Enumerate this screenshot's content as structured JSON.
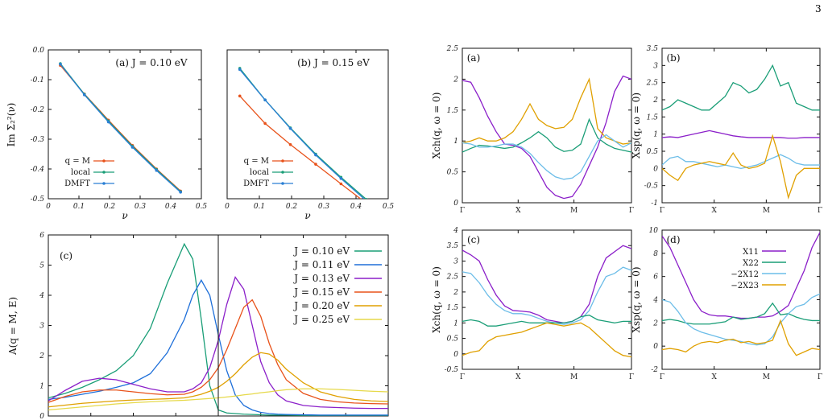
{
  "page_number": "3",
  "colors": {
    "green": "#1a9e77",
    "blue": "#1e6fd9",
    "purple": "#8b1fc9",
    "orange": "#e8521a",
    "gold": "#e0a000",
    "yellow": "#e6d94a",
    "sky": "#6cbde8",
    "dmft": "#2a7fd4"
  },
  "chart_data": [
    {
      "id": "top-left-a",
      "type": "line",
      "panel_label": "(a) J = 0.10 eV",
      "xlabel": "ν",
      "ylabel": "Im Σ₂²(ν)",
      "xlim": [
        0,
        0.5
      ],
      "ylim": [
        -0.5,
        0.0
      ],
      "xticks": [
        "0",
        "0.1",
        "0.2",
        "0.3",
        "0.4",
        "0.5"
      ],
      "yticks": [
        "0.0",
        "-0.1",
        "-0.2",
        "-0.3",
        "-0.4",
        "-0.5"
      ],
      "legend": [
        "q = M",
        "local",
        "DMFT"
      ],
      "x": [
        0.0393,
        0.1178,
        0.1963,
        0.2749,
        0.3534,
        0.432
      ],
      "series": [
        {
          "name": "q = M",
          "color": "#e8521a",
          "values": [
            -0.052,
            -0.148,
            -0.236,
            -0.321,
            -0.4,
            -0.474
          ]
        },
        {
          "name": "local",
          "color": "#1a9e77",
          "values": [
            -0.046,
            -0.149,
            -0.239,
            -0.324,
            -0.402,
            -0.476
          ]
        },
        {
          "name": "DMFT",
          "color": "#2a7fd4",
          "values": [
            -0.048,
            -0.151,
            -0.242,
            -0.327,
            -0.405,
            -0.478
          ]
        }
      ]
    },
    {
      "id": "top-left-b",
      "type": "line",
      "panel_label": "(b) J = 0.15 eV",
      "xlabel": "ν",
      "xlim": [
        0,
        0.5
      ],
      "ylim": [
        -0.5,
        0.0
      ],
      "xticks": [
        "0",
        "0.1",
        "0.2",
        "0.3",
        "0.4",
        "0.5"
      ],
      "legend": [
        "q = M",
        "local",
        "DMFT"
      ],
      "x": [
        0.0393,
        0.1178,
        0.1963,
        0.2749,
        0.3534,
        0.432
      ],
      "series": [
        {
          "name": "q = M",
          "color": "#e8521a",
          "values": [
            -0.155,
            -0.247,
            -0.318,
            -0.384,
            -0.45,
            -0.515
          ]
        },
        {
          "name": "local",
          "color": "#1a9e77",
          "values": [
            -0.062,
            -0.168,
            -0.262,
            -0.35,
            -0.428,
            -0.502
          ]
        },
        {
          "name": "DMFT",
          "color": "#2a7fd4",
          "values": [
            -0.066,
            -0.168,
            -0.264,
            -0.353,
            -0.432,
            -0.507
          ]
        }
      ]
    },
    {
      "id": "bottom-left-c",
      "type": "line",
      "panel_label": "(c)",
      "ylabel": "A(q = M, E)",
      "xlim": [
        -0.2,
        0.2
      ],
      "ylim": [
        0,
        6
      ],
      "xticks": [
        "-0.20",
        "-0.15",
        "-0.10",
        "-0.05",
        "0.00",
        "0.05",
        "0.10",
        "0.15",
        "0.20"
      ],
      "yticks": [
        "0",
        "1",
        "2",
        "3",
        "4",
        "5",
        "6"
      ],
      "x": [
        -0.2,
        -0.18,
        -0.16,
        -0.14,
        -0.12,
        -0.1,
        -0.08,
        -0.06,
        -0.04,
        -0.03,
        -0.02,
        -0.01,
        0.0,
        0.01,
        0.02,
        0.03,
        0.04,
        0.05,
        0.06,
        0.07,
        0.08,
        0.1,
        0.12,
        0.14,
        0.16,
        0.18,
        0.2
      ],
      "series": [
        {
          "name": "J = 0.10 eV",
          "color": "#1a9e77",
          "values": [
            0.6,
            0.75,
            0.95,
            1.2,
            1.5,
            2.0,
            2.9,
            4.4,
            5.7,
            5.2,
            3.2,
            1.0,
            0.2,
            0.1,
            0.08,
            0.06,
            0.05,
            0.04,
            0.03,
            0.03,
            0.03,
            0.02,
            0.02,
            0.02,
            0.02,
            0.02,
            0.02
          ]
        },
        {
          "name": "J = 0.11 eV",
          "color": "#1e6fd9",
          "values": [
            0.55,
            0.62,
            0.72,
            0.82,
            0.95,
            1.1,
            1.4,
            2.1,
            3.2,
            4.0,
            4.5,
            4.0,
            2.7,
            1.5,
            0.7,
            0.35,
            0.2,
            0.12,
            0.08,
            0.06,
            0.05,
            0.04,
            0.03,
            0.03,
            0.03,
            0.03,
            0.03
          ]
        },
        {
          "name": "J = 0.13 eV",
          "color": "#8b1fc9",
          "values": [
            0.5,
            0.85,
            1.15,
            1.25,
            1.2,
            1.05,
            0.9,
            0.8,
            0.8,
            0.9,
            1.1,
            1.6,
            2.5,
            3.7,
            4.6,
            4.2,
            3.0,
            1.8,
            1.1,
            0.7,
            0.5,
            0.35,
            0.3,
            0.28,
            0.26,
            0.25,
            0.25
          ]
        },
        {
          "name": "J = 0.15 eV",
          "color": "#e8521a",
          "values": [
            0.45,
            0.65,
            0.8,
            0.86,
            0.86,
            0.8,
            0.74,
            0.7,
            0.72,
            0.8,
            0.95,
            1.2,
            1.6,
            2.2,
            2.9,
            3.6,
            3.85,
            3.3,
            2.4,
            1.7,
            1.2,
            0.75,
            0.55,
            0.47,
            0.43,
            0.41,
            0.4
          ]
        },
        {
          "name": "J = 0.20 eV",
          "color": "#e0a000",
          "values": [
            0.3,
            0.36,
            0.42,
            0.46,
            0.5,
            0.53,
            0.55,
            0.57,
            0.6,
            0.65,
            0.72,
            0.82,
            0.95,
            1.15,
            1.4,
            1.7,
            1.95,
            2.1,
            2.05,
            1.85,
            1.55,
            1.1,
            0.8,
            0.65,
            0.55,
            0.5,
            0.48
          ]
        },
        {
          "name": "J = 0.25 eV",
          "color": "#e6d94a",
          "values": [
            0.2,
            0.25,
            0.3,
            0.35,
            0.4,
            0.44,
            0.47,
            0.5,
            0.52,
            0.54,
            0.56,
            0.58,
            0.6,
            0.63,
            0.66,
            0.7,
            0.73,
            0.77,
            0.8,
            0.84,
            0.87,
            0.9,
            0.9,
            0.88,
            0.85,
            0.82,
            0.8
          ]
        }
      ]
    },
    {
      "id": "right-a",
      "type": "line",
      "panel_label": "(a)",
      "ylabel": "Xch(q, ω = 0)",
      "ylim": [
        0,
        2.5
      ],
      "yticks": [
        "0",
        "0.5",
        "1",
        "1.5",
        "2",
        "2.5"
      ],
      "xticks": [
        "Γ",
        "X",
        "M",
        "Γ"
      ],
      "x": [
        0,
        0.05,
        0.1,
        0.15,
        0.2,
        0.25,
        0.3,
        0.35,
        0.4,
        0.45,
        0.5,
        0.55,
        0.6,
        0.65,
        0.7,
        0.75,
        0.8,
        0.85,
        0.9,
        0.95,
        1.0
      ],
      "series": [
        {
          "color": "#8b1fc9",
          "values": [
            1.98,
            1.95,
            1.7,
            1.4,
            1.15,
            0.95,
            0.93,
            0.88,
            0.75,
            0.5,
            0.25,
            0.12,
            0.07,
            0.1,
            0.3,
            0.6,
            0.9,
            1.3,
            1.8,
            2.05,
            2.0
          ]
        },
        {
          "color": "#1a9e77",
          "values": [
            0.82,
            0.88,
            0.93,
            0.92,
            0.9,
            0.88,
            0.9,
            0.97,
            1.05,
            1.15,
            1.05,
            0.9,
            0.83,
            0.85,
            0.95,
            1.35,
            1.05,
            0.95,
            0.88,
            0.85,
            0.82
          ]
        },
        {
          "color": "#e0a000",
          "values": [
            0.97,
            1.0,
            1.05,
            1.0,
            1.0,
            1.05,
            1.15,
            1.35,
            1.6,
            1.35,
            1.25,
            1.2,
            1.22,
            1.35,
            1.7,
            2.0,
            1.2,
            1.05,
            1.0,
            0.95,
            0.97
          ]
        },
        {
          "color": "#6cbde8",
          "values": [
            0.97,
            0.95,
            0.9,
            0.9,
            0.92,
            0.95,
            0.95,
            0.9,
            0.8,
            0.65,
            0.52,
            0.42,
            0.38,
            0.4,
            0.5,
            0.75,
            1.0,
            1.1,
            1.0,
            0.9,
            0.97
          ]
        }
      ]
    },
    {
      "id": "right-b",
      "type": "line",
      "panel_label": "(b)",
      "ylabel": "Xsp(q, ω = 0)",
      "ylim": [
        -1,
        3.5
      ],
      "yticks": [
        "-1",
        "-0.5",
        "0",
        "0.5",
        "1",
        "1.5",
        "2",
        "2.5",
        "3",
        "3.5"
      ],
      "xticks": [
        "Γ",
        "X",
        "M",
        "Γ"
      ],
      "x": [
        0,
        0.05,
        0.1,
        0.15,
        0.2,
        0.25,
        0.3,
        0.35,
        0.4,
        0.45,
        0.5,
        0.55,
        0.6,
        0.65,
        0.7,
        0.75,
        0.8,
        0.85,
        0.9,
        0.95,
        1.0
      ],
      "series": [
        {
          "color": "#1a9e77",
          "values": [
            1.7,
            1.8,
            2.0,
            1.9,
            1.8,
            1.7,
            1.7,
            1.9,
            2.1,
            2.5,
            2.4,
            2.2,
            2.3,
            2.6,
            3.0,
            2.4,
            2.5,
            1.9,
            1.8,
            1.7,
            1.7
          ]
        },
        {
          "color": "#8b1fc9",
          "values": [
            0.9,
            0.92,
            0.9,
            0.95,
            1.0,
            1.05,
            1.1,
            1.05,
            1.0,
            0.95,
            0.92,
            0.9,
            0.9,
            0.9,
            0.9,
            0.9,
            0.88,
            0.88,
            0.9,
            0.9,
            0.9
          ]
        },
        {
          "color": "#6cbde8",
          "values": [
            0.1,
            0.3,
            0.35,
            0.2,
            0.2,
            0.15,
            0.1,
            0.05,
            0.1,
            0.05,
            0.0,
            0.05,
            0.1,
            0.2,
            0.3,
            0.4,
            0.3,
            0.15,
            0.1,
            0.1,
            0.1
          ]
        },
        {
          "color": "#e0a000",
          "values": [
            0.0,
            -0.2,
            -0.35,
            0.0,
            0.1,
            0.15,
            0.2,
            0.15,
            0.1,
            0.45,
            0.1,
            0.0,
            0.05,
            0.15,
            0.95,
            0.2,
            -0.85,
            -0.2,
            0.0,
            0.0,
            0.0
          ]
        }
      ]
    },
    {
      "id": "right-c",
      "type": "line",
      "panel_label": "(c)",
      "ylabel": "Xch(q, ω = 0)",
      "ylim": [
        -0.5,
        4
      ],
      "yticks": [
        "-0.5",
        "0",
        "0.5",
        "1",
        "1.5",
        "2",
        "2.5",
        "3",
        "3.5",
        "4"
      ],
      "xticks": [
        "Γ",
        "X",
        "M",
        "Γ"
      ],
      "x": [
        0,
        0.05,
        0.1,
        0.15,
        0.2,
        0.25,
        0.3,
        0.35,
        0.4,
        0.45,
        0.5,
        0.55,
        0.6,
        0.65,
        0.7,
        0.75,
        0.8,
        0.85,
        0.9,
        0.95,
        1.0
      ],
      "series": [
        {
          "color": "#8b1fc9",
          "values": [
            3.35,
            3.2,
            3.0,
            2.4,
            1.9,
            1.55,
            1.4,
            1.38,
            1.35,
            1.25,
            1.1,
            1.05,
            1.0,
            1.05,
            1.2,
            1.6,
            2.5,
            3.1,
            3.3,
            3.5,
            3.4
          ]
        },
        {
          "color": "#6cbde8",
          "values": [
            2.65,
            2.6,
            2.3,
            1.9,
            1.6,
            1.4,
            1.3,
            1.3,
            1.25,
            1.15,
            1.05,
            1.0,
            0.95,
            1.0,
            1.1,
            1.4,
            2.0,
            2.5,
            2.6,
            2.8,
            2.7
          ]
        },
        {
          "color": "#1a9e77",
          "values": [
            1.05,
            1.1,
            1.05,
            0.9,
            0.9,
            0.95,
            1.0,
            1.05,
            1.0,
            1.0,
            1.0,
            1.0,
            1.0,
            1.05,
            1.2,
            1.25,
            1.1,
            1.05,
            1.0,
            1.05,
            1.05
          ]
        },
        {
          "color": "#e0a000",
          "values": [
            -0.05,
            0.05,
            0.1,
            0.4,
            0.55,
            0.6,
            0.65,
            0.7,
            0.8,
            0.9,
            1.0,
            0.95,
            0.9,
            0.95,
            1.0,
            0.85,
            0.6,
            0.35,
            0.1,
            -0.05,
            -0.1
          ]
        }
      ]
    },
    {
      "id": "right-d",
      "type": "line",
      "panel_label": "(d)",
      "ylabel": "Xsp(q, ω = 0)",
      "ylim": [
        -2,
        10
      ],
      "yticks": [
        "-2",
        "0",
        "2",
        "4",
        "6",
        "8",
        "10"
      ],
      "xticks": [
        "Γ",
        "X",
        "M",
        "Γ"
      ],
      "legend": [
        "X11",
        "X22",
        "−2X12",
        "−2X23"
      ],
      "x": [
        0,
        0.05,
        0.1,
        0.15,
        0.2,
        0.25,
        0.3,
        0.35,
        0.4,
        0.45,
        0.5,
        0.55,
        0.6,
        0.65,
        0.7,
        0.75,
        0.8,
        0.85,
        0.9,
        0.95,
        1.0
      ],
      "series": [
        {
          "name": "X11",
          "color": "#8b1fc9",
          "values": [
            9.5,
            8.5,
            7.0,
            5.5,
            4.0,
            3.0,
            2.7,
            2.6,
            2.6,
            2.5,
            2.4,
            2.4,
            2.5,
            2.5,
            2.6,
            3.0,
            3.5,
            5.0,
            6.5,
            8.5,
            9.8
          ]
        },
        {
          "name": "X22",
          "color": "#1a9e77",
          "values": [
            2.2,
            2.3,
            2.2,
            2.0,
            1.9,
            1.9,
            1.9,
            2.0,
            2.1,
            2.5,
            2.3,
            2.4,
            2.5,
            2.8,
            3.7,
            2.7,
            2.8,
            2.5,
            2.3,
            2.2,
            2.2
          ]
        },
        {
          "name": "−2X12",
          "color": "#6cbde8",
          "values": [
            4.0,
            3.8,
            3.0,
            2.0,
            1.5,
            1.2,
            1.0,
            0.8,
            0.6,
            0.5,
            0.4,
            0.2,
            0.1,
            0.2,
            0.8,
            2.0,
            2.8,
            3.4,
            3.6,
            4.2,
            4.5
          ]
        },
        {
          "name": "−2X23",
          "color": "#e0a000",
          "values": [
            -0.3,
            -0.2,
            -0.3,
            -0.5,
            0.0,
            0.3,
            0.4,
            0.3,
            0.5,
            0.6,
            0.3,
            0.4,
            0.2,
            0.3,
            0.5,
            2.2,
            0.2,
            -0.8,
            -0.5,
            -0.2,
            -0.3
          ]
        }
      ]
    }
  ]
}
